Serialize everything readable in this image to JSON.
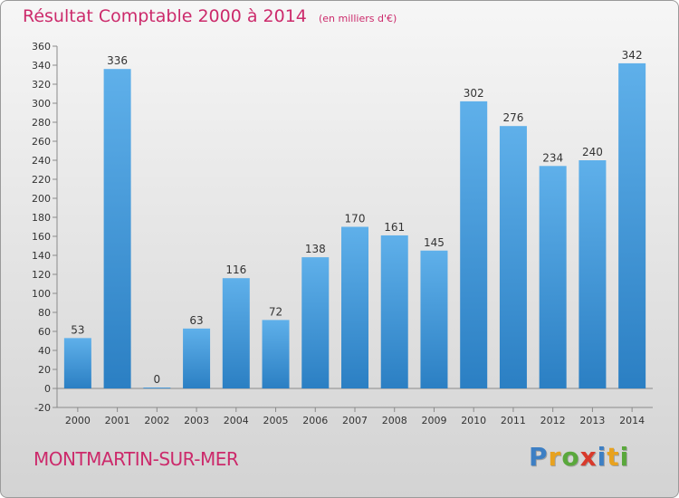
{
  "chart_data": {
    "type": "bar",
    "title": "Résultat Comptable 2000 à 2014",
    "subtitle": "(en milliers d'€)",
    "xlabel": "",
    "ylabel": "",
    "categories": [
      "2000",
      "2001",
      "2002",
      "2003",
      "2004",
      "2005",
      "2006",
      "2007",
      "2008",
      "2009",
      "2010",
      "2011",
      "2012",
      "2013",
      "2014"
    ],
    "values": [
      53,
      336,
      0,
      63,
      116,
      72,
      138,
      170,
      161,
      145,
      302,
      276,
      234,
      240,
      342
    ],
    "ylim": [
      -20,
      360
    ],
    "yticks": [
      -20,
      0,
      20,
      40,
      60,
      80,
      100,
      120,
      140,
      160,
      180,
      200,
      220,
      240,
      260,
      280,
      300,
      320,
      340,
      360
    ],
    "grid": false,
    "legend": "none",
    "bar_color": "#3f97d8"
  },
  "footer": {
    "commune": "MONTMARTIN-SUR-MER",
    "brand_letters": [
      {
        "char": "P",
        "color": "#3d7fc4"
      },
      {
        "char": "r",
        "color": "#e8a21f"
      },
      {
        "char": "o",
        "color": "#5aa83c"
      },
      {
        "char": "x",
        "color": "#d83a2c"
      },
      {
        "char": "i",
        "color": "#3d7fc4"
      },
      {
        "char": "t",
        "color": "#e8a21f"
      },
      {
        "char": "i",
        "color": "#5aa83c"
      }
    ]
  },
  "colors": {
    "accent": "#cc2a6b",
    "axis": "#888888",
    "text": "#333333"
  }
}
